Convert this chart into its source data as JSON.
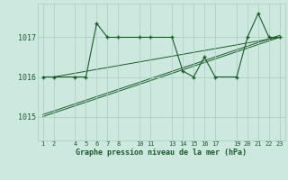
{
  "bg_color": "#cce8df",
  "grid_color": "#aaccbb",
  "line_color": "#1a5c2a",
  "marker_color": "#1a5c2a",
  "title": "Graphe pression niveau de la mer (hPa)",
  "ylabel_vals": [
    1015,
    1016,
    1017
  ],
  "xlim": [
    0.5,
    23.5
  ],
  "ylim": [
    1014.4,
    1017.85
  ],
  "xticks": [
    1,
    2,
    4,
    5,
    6,
    7,
    8,
    10,
    11,
    13,
    14,
    15,
    16,
    17,
    19,
    20,
    21,
    22,
    23
  ],
  "xtick_labels": [
    "1",
    "2",
    "4",
    "5",
    "6",
    "7",
    "8",
    "10",
    "11",
    "13",
    "14",
    "15",
    "16",
    "17",
    "19",
    "20",
    "21",
    "22",
    "23"
  ],
  "series_main": {
    "x": [
      1,
      2,
      4,
      5,
      6,
      7,
      8,
      10,
      11,
      13,
      14,
      15,
      16,
      17,
      19,
      20,
      21,
      22,
      23
    ],
    "y": [
      1016.0,
      1016.0,
      1016.0,
      1016.0,
      1017.35,
      1017.0,
      1017.0,
      1017.0,
      1017.0,
      1017.0,
      1016.15,
      1016.0,
      1016.5,
      1016.0,
      1016.0,
      1017.0,
      1017.6,
      1017.0,
      1017.0
    ]
  },
  "series_trend1": {
    "x": [
      1,
      23
    ],
    "y": [
      1015.0,
      1017.0
    ]
  },
  "series_trend2": {
    "x": [
      1,
      23
    ],
    "y": [
      1015.05,
      1017.05
    ]
  },
  "series_trend3": {
    "x": [
      2,
      23
    ],
    "y": [
      1016.0,
      1017.0
    ]
  }
}
